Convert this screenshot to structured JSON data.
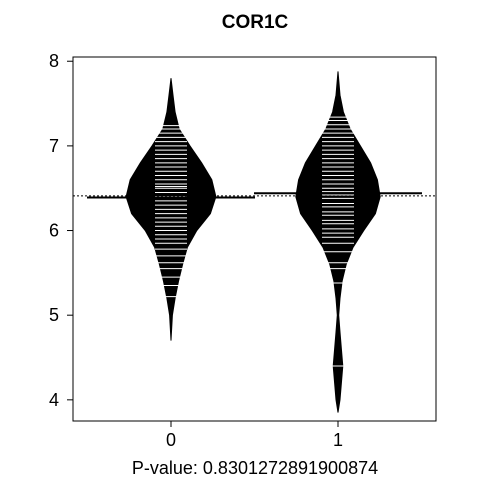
{
  "chart_data": {
    "type": "beanplot",
    "title": "COR1C",
    "xlabel": "P-value: 0.8301272891900874",
    "ylabel": "",
    "categories": [
      "0",
      "1"
    ],
    "ylim": [
      3.75,
      8.05
    ],
    "yticks": [
      4,
      5,
      6,
      7,
      8
    ],
    "overall_mean": 6.41,
    "series": [
      {
        "name": "0",
        "mean": 6.39,
        "density_y": [
          4.7,
          5.0,
          5.2,
          5.4,
          5.6,
          5.8,
          6.0,
          6.2,
          6.4,
          6.6,
          6.8,
          7.0,
          7.2,
          7.4,
          7.6,
          7.8
        ],
        "density_w": [
          0.0,
          0.02,
          0.06,
          0.11,
          0.17,
          0.24,
          0.38,
          0.58,
          0.66,
          0.6,
          0.45,
          0.28,
          0.12,
          0.06,
          0.03,
          0.0
        ],
        "points": [
          5.22,
          5.35,
          5.45,
          5.55,
          5.62,
          5.7,
          5.78,
          5.85,
          5.9,
          5.95,
          6.0,
          6.05,
          6.1,
          6.15,
          6.2,
          6.25,
          6.3,
          6.35,
          6.4,
          6.45,
          6.5,
          6.52,
          6.55,
          6.6,
          6.65,
          6.7,
          6.75,
          6.8,
          6.85,
          6.9,
          6.95,
          7.0,
          7.05,
          7.1,
          7.15,
          7.2,
          7.24
        ]
      },
      {
        "name": "1",
        "mean": 6.44,
        "density_y": [
          3.85,
          4.0,
          4.2,
          4.4,
          4.6,
          4.8,
          5.0,
          5.2,
          5.4,
          5.6,
          5.8,
          6.0,
          6.2,
          6.4,
          6.6,
          6.8,
          7.0,
          7.2,
          7.4,
          7.6,
          7.88
        ],
        "density_w": [
          0.0,
          0.03,
          0.05,
          0.07,
          0.05,
          0.03,
          0.01,
          0.03,
          0.06,
          0.12,
          0.22,
          0.38,
          0.55,
          0.62,
          0.58,
          0.48,
          0.33,
          0.18,
          0.08,
          0.03,
          0.0
        ],
        "points": [
          4.4,
          5.38,
          5.55,
          5.62,
          5.75,
          5.85,
          5.92,
          5.97,
          6.02,
          6.08,
          6.12,
          6.18,
          6.22,
          6.28,
          6.32,
          6.38,
          6.42,
          6.46,
          6.5,
          6.55,
          6.6,
          6.65,
          6.7,
          6.75,
          6.8,
          6.85,
          6.9,
          6.95,
          7.0,
          7.05,
          7.1,
          7.15,
          7.2,
          7.25,
          7.3,
          7.34
        ]
      }
    ]
  }
}
